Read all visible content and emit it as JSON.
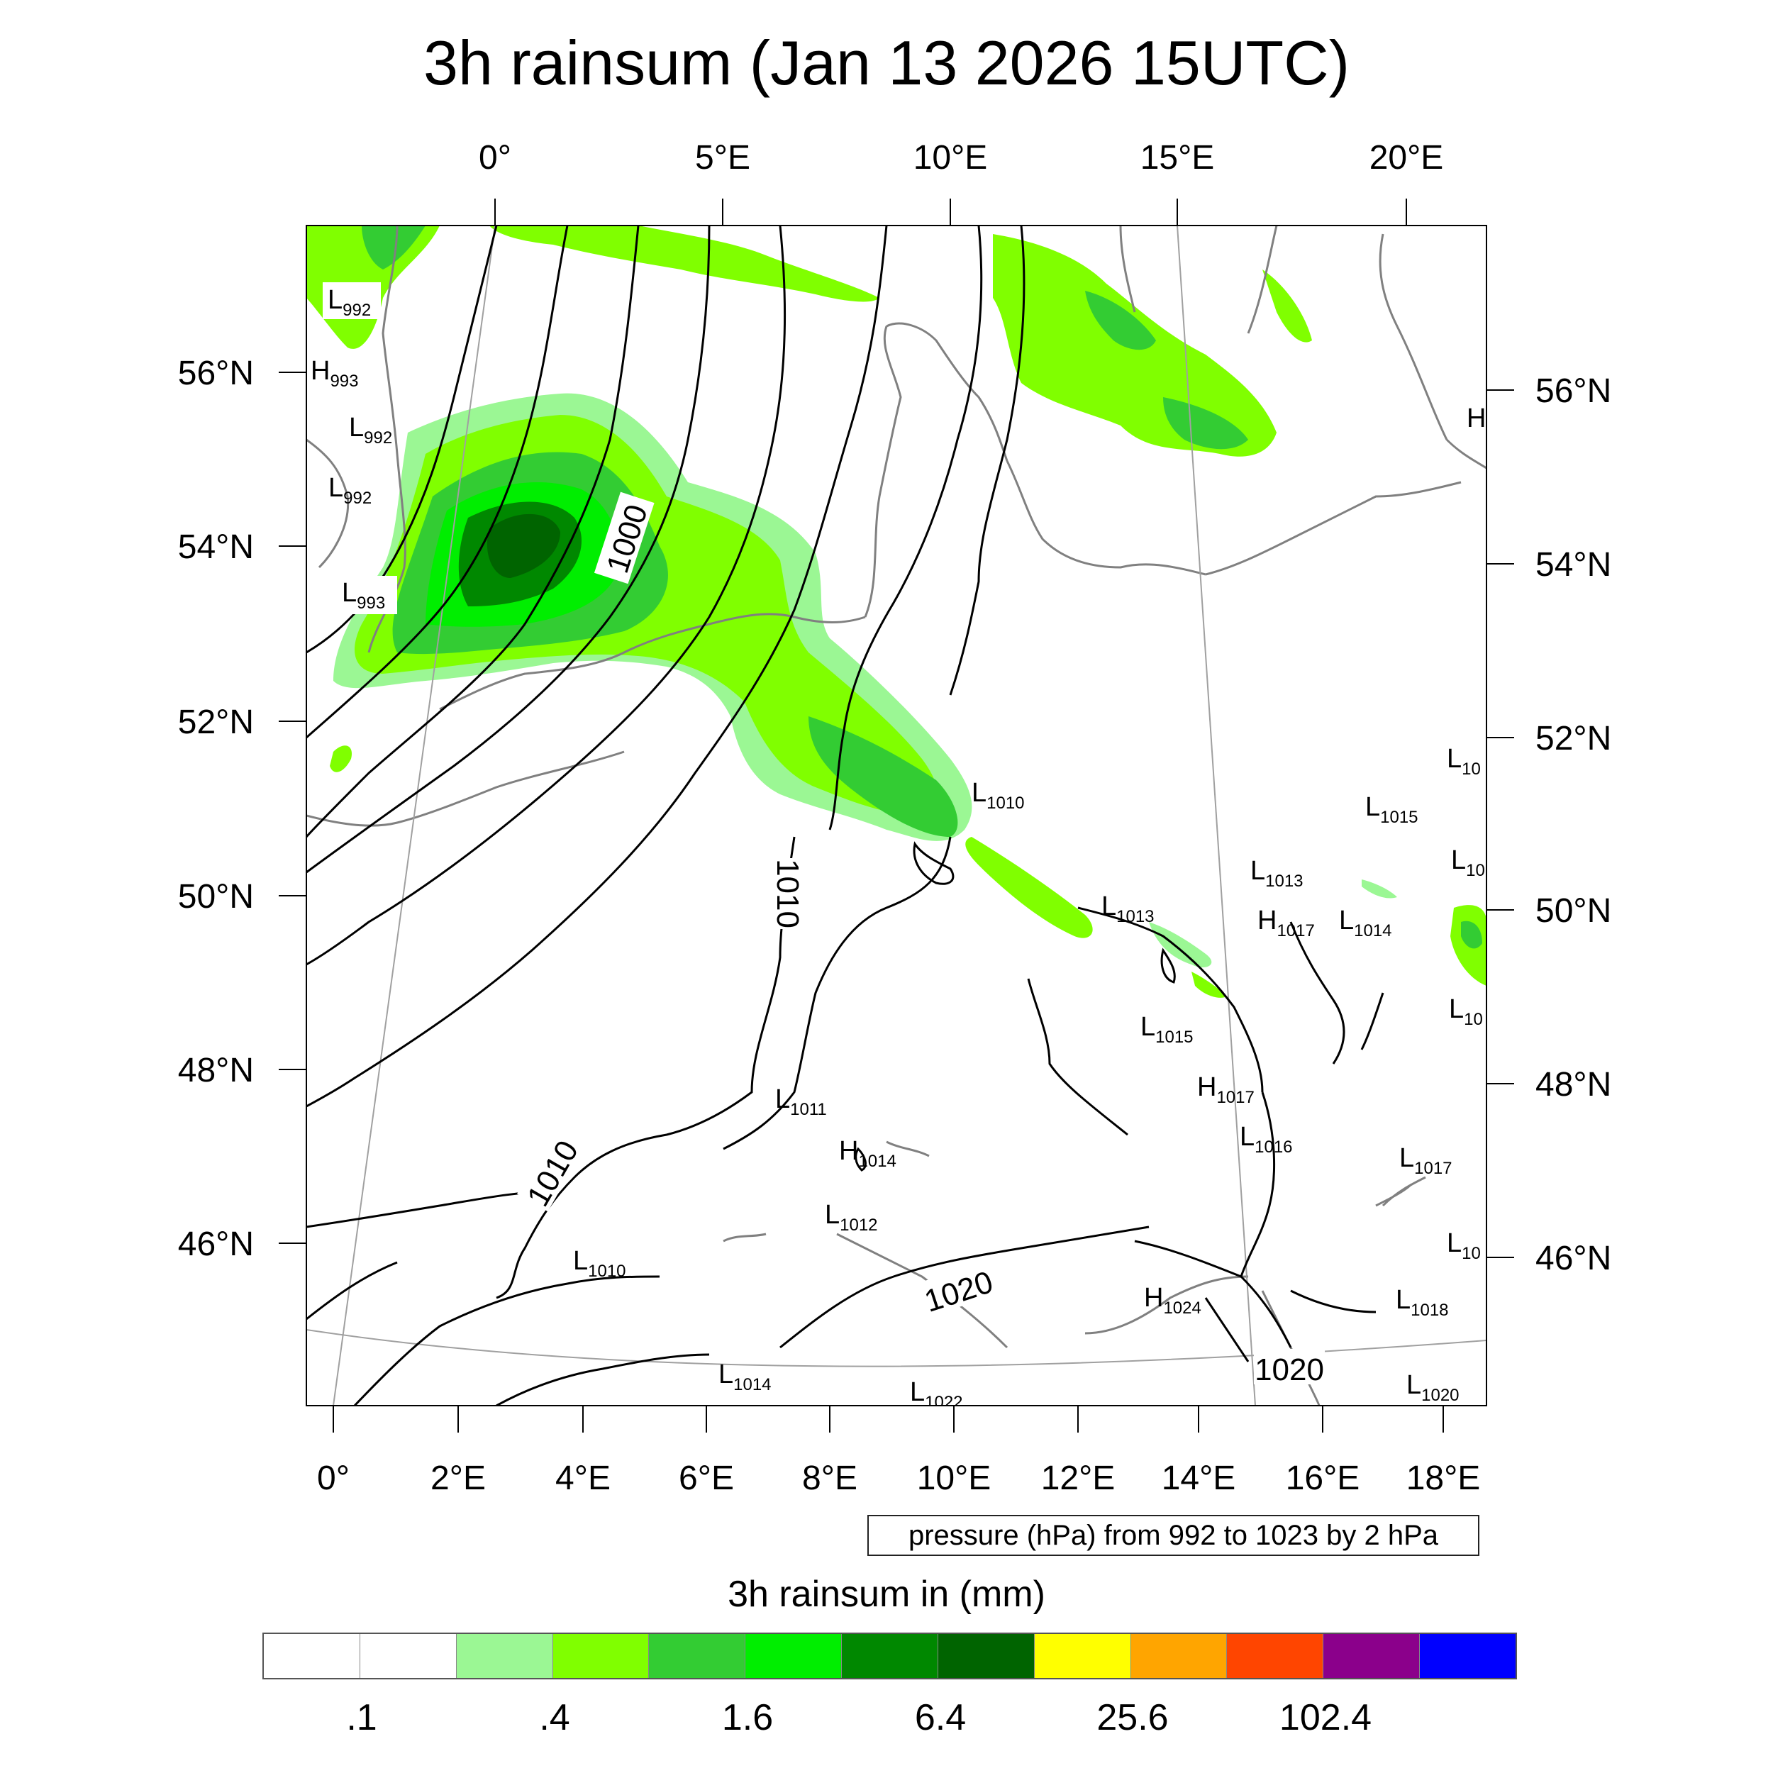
{
  "title": "3h rainsum (Jan 13 2026 15UTC)",
  "top_lon_labels": [
    "0°",
    "5°E",
    "10°E",
    "15°E",
    "20°E"
  ],
  "bottom_lon_labels": [
    "0°",
    "2°E",
    "4°E",
    "6°E",
    "8°E",
    "10°E",
    "12°E",
    "14°E",
    "16°E",
    "18°E"
  ],
  "left_lat_labels": [
    "56°N",
    "54°N",
    "52°N",
    "50°N",
    "48°N",
    "46°N"
  ],
  "right_lat_labels": [
    "56°N",
    "54°N",
    "52°N",
    "50°N",
    "48°N",
    "46°N"
  ],
  "contour_info": "pressure (hPa) from 992 to 1023 by 2 hPa",
  "contour_labels": [
    "1000",
    "1010",
    "1010",
    "1020",
    "1020"
  ],
  "pressure_centers": [
    {
      "type": "L",
      "value": "992"
    },
    {
      "type": "H",
      "value": "993"
    },
    {
      "type": "L",
      "value": "992"
    },
    {
      "type": "L",
      "value": "992"
    },
    {
      "type": "L",
      "value": "993"
    },
    {
      "type": "H",
      "value": ""
    },
    {
      "type": "L",
      "value": "1010"
    },
    {
      "type": "L",
      "value": "10"
    },
    {
      "type": "L",
      "value": "1015"
    },
    {
      "type": "L",
      "value": "10"
    },
    {
      "type": "L",
      "value": "1013"
    },
    {
      "type": "L",
      "value": "1013"
    },
    {
      "type": "H",
      "value": "1017"
    },
    {
      "type": "L",
      "value": "1014"
    },
    {
      "type": "L",
      "value": "10"
    },
    {
      "type": "L",
      "value": "1015"
    },
    {
      "type": "H",
      "value": "1017"
    },
    {
      "type": "L",
      "value": "1016"
    },
    {
      "type": "L",
      "value": "1011"
    },
    {
      "type": "H",
      "value": "1014"
    },
    {
      "type": "L",
      "value": "1012"
    },
    {
      "type": "L",
      "value": "1017"
    },
    {
      "type": "L",
      "value": "1010"
    },
    {
      "type": "L",
      "value": "10"
    },
    {
      "type": "H",
      "value": "1024"
    },
    {
      "type": "L",
      "value": "1018"
    },
    {
      "type": "L",
      "value": "1014"
    },
    {
      "type": "L",
      "value": "1022"
    },
    {
      "type": "L",
      "value": "1020"
    }
  ],
  "colorbar": {
    "title": "3h rainsum in (mm)",
    "colors": [
      "#ffffff",
      "#ffffff",
      "#9bf794",
      "#80ff00",
      "#33cc33",
      "#00ee00",
      "#008800",
      "#006400",
      "#ffff00",
      "#ffa500",
      "#ff4500",
      "#8b008b",
      "#0000ff"
    ],
    "labels": [
      ".1",
      ".4",
      "1.6",
      "6.4",
      "25.6",
      "102.4"
    ]
  },
  "colors": {
    "coast": "#808080",
    "contour": "#000000",
    "graticule": "#a0a0a0"
  }
}
